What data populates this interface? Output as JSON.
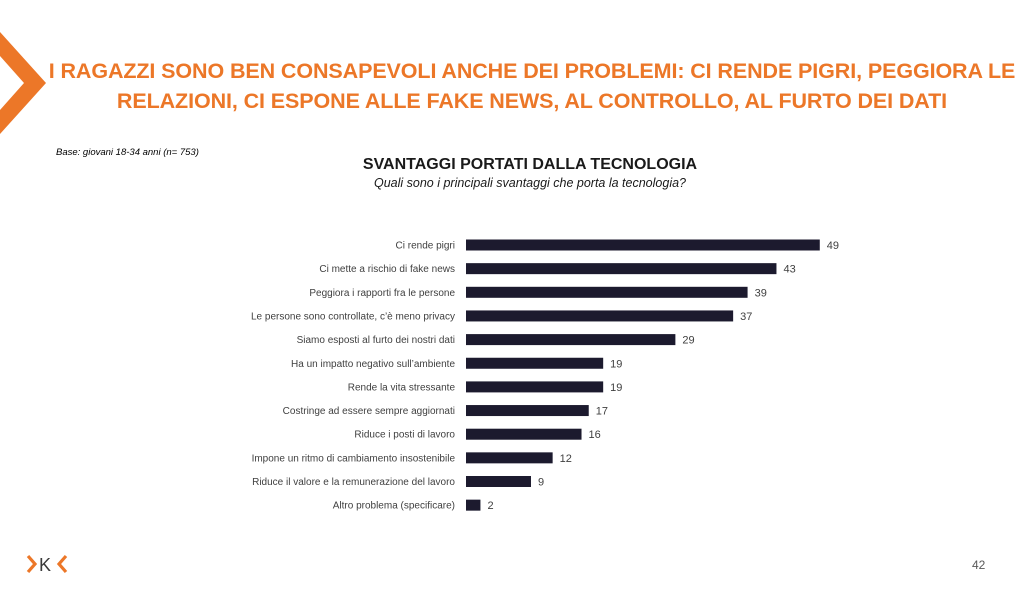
{
  "slide": {
    "title_line1": "I RAGAZZI SONO BEN CONSAPEVOLI ANCHE DEI PROBLEMI: CI RENDE PIGRI, PEGGIORA LE",
    "title_line2": "RELAZIONI, CI ESPONE ALLE FAKE NEWS, AL CONTROLLO, AL FURTO DEI DATI",
    "base_note": "Base: giovani 18-34 anni (n= 753)",
    "page_number": "42",
    "accent_color": "#ec7728",
    "logo_icon": "k-chevron-logo-icon",
    "logo_letter": "K"
  },
  "chart_data": {
    "type": "bar",
    "orientation": "horizontal",
    "title": "SVANTAGGI PORTATI DALLA TECNOLOGIA",
    "subtitle": "Quali sono i principali svantaggi che porta la tecnologia?",
    "categories": [
      "Ci rende pigri",
      "Ci mette a rischio di fake news",
      "Peggiora i rapporti fra le persone",
      "Le persone sono controllate, c’è meno privacy",
      "Siamo esposti al furto dei nostri dati",
      "Ha un impatto negativo sull’ambiente",
      "Rende la vita stressante",
      "Costringe ad essere sempre aggiornati",
      "Riduce i posti di lavoro",
      "Impone un ritmo di cambiamento insostenibile",
      "Riduce il valore e la remunerazione del lavoro",
      "Altro problema (specificare)"
    ],
    "values": [
      49,
      43,
      39,
      37,
      29,
      19,
      19,
      17,
      16,
      12,
      9,
      2
    ],
    "bar_color": "#1c1a2e",
    "xlim": [
      0,
      50
    ],
    "grid": false,
    "data_labels": true
  }
}
